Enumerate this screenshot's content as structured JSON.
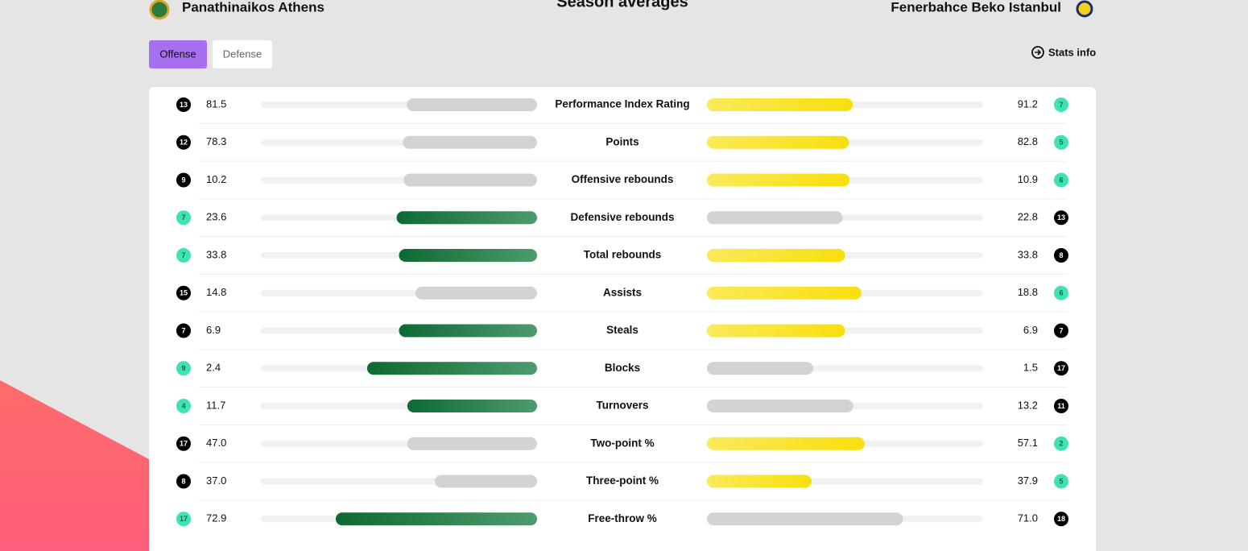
{
  "header": {
    "home": "Panathinaikos Athens",
    "title": "Season averages",
    "away": "Fenerbahce Beko Istanbul"
  },
  "tabs": [
    "Offense",
    "Defense"
  ],
  "active_tab": 0,
  "stats_info": "Stats info",
  "colors": {
    "home_best": "#137a3e",
    "away_best": "#f9e31c",
    "other": "#d3d3d3",
    "rank_best": "#3fe3b3",
    "rank_other": "#000000"
  },
  "rows": [
    {
      "label": "Performance Index Rating",
      "home": {
        "rank": 13,
        "value": 81.5
      },
      "away": {
        "rank": 7,
        "value": 91.2
      }
    },
    {
      "label": "Points",
      "home": {
        "rank": 12,
        "value": 78.3
      },
      "away": {
        "rank": 5,
        "value": 82.8
      }
    },
    {
      "label": "Offensive rebounds",
      "home": {
        "rank": 9,
        "value": 10.2
      },
      "away": {
        "rank": 6,
        "value": 10.9
      }
    },
    {
      "label": "Defensive rebounds",
      "home": {
        "rank": 7,
        "value": 23.6
      },
      "away": {
        "rank": 13,
        "value": 22.8
      }
    },
    {
      "label": "Total rebounds",
      "home": {
        "rank": 7,
        "value": 33.8
      },
      "away": {
        "rank": 8,
        "value": 33.8
      }
    },
    {
      "label": "Assists",
      "home": {
        "rank": 15,
        "value": 14.8
      },
      "away": {
        "rank": 6,
        "value": 18.8
      }
    },
    {
      "label": "Steals",
      "home": {
        "rank": 7,
        "value": 6.9
      },
      "away": {
        "rank": 7,
        "value": 6.9
      }
    },
    {
      "label": "Blocks",
      "home": {
        "rank": 9,
        "value": 2.4
      },
      "away": {
        "rank": 17,
        "value": 1.5
      }
    },
    {
      "label": "Turnovers",
      "lower_better": true,
      "home": {
        "rank": 4,
        "value": 11.7
      },
      "away": {
        "rank": 11,
        "value": 13.2
      }
    },
    {
      "label": "Two-point %",
      "home": {
        "rank": 17,
        "value": 47,
        "value_label": "47.0"
      },
      "away": {
        "rank": 2,
        "value": 57.1
      }
    },
    {
      "label": "Three-point %",
      "home": {
        "rank": 8,
        "value": 37,
        "value_label": "37.0"
      },
      "away": {
        "rank": 5,
        "value": 37.9
      }
    },
    {
      "label": "Free-throw %",
      "home": {
        "rank": 17,
        "value": 72.9
      },
      "away": {
        "rank": 18,
        "value": 71,
        "value_label": "71.0"
      }
    }
  ]
}
